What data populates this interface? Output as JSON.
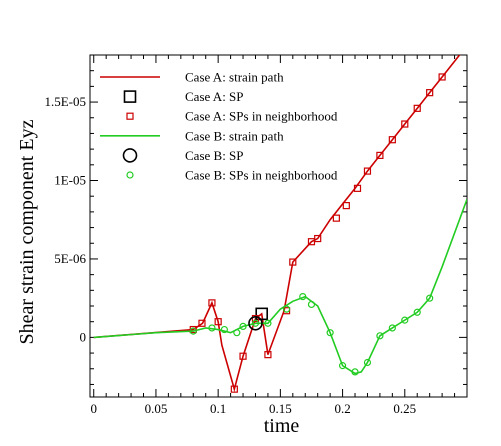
{
  "chart_data": {
    "type": "line",
    "title": "",
    "xlabel": "time",
    "ylabel": "Shear strain component Eyz",
    "xlim": [
      -0.003,
      0.3
    ],
    "ylim": [
      -3.8e-06,
      1.8e-05
    ],
    "x_ticks": [
      {
        "value": 0,
        "label": "0"
      },
      {
        "value": 0.05,
        "label": "0.05"
      },
      {
        "value": 0.1,
        "label": "0.1"
      },
      {
        "value": 0.15,
        "label": "0.15"
      },
      {
        "value": 0.2,
        "label": "0.2"
      },
      {
        "value": 0.25,
        "label": "0.25"
      }
    ],
    "y_ticks": [
      {
        "value": 0,
        "label": "0"
      },
      {
        "value": 5e-06,
        "label": "5E-06"
      },
      {
        "value": 1e-05,
        "label": "1E-05"
      },
      {
        "value": 1.5e-05,
        "label": "1.5E-05"
      }
    ],
    "legend_position": "top-left",
    "series": [
      {
        "name": "Case A: strain path",
        "color": "#cc0000",
        "marker": "none",
        "x": [
          0,
          0.08,
          0.0875,
          0.095,
          0.1,
          0.103,
          0.113,
          0.12,
          0.13,
          0.135,
          0.14,
          0.153,
          0.16,
          0.175,
          0.18,
          0.19,
          0.2,
          0.21,
          0.22,
          0.23,
          0.24,
          0.25,
          0.26,
          0.27,
          0.28,
          0.3
        ],
        "y": [
          0,
          5e-07,
          9e-07,
          2.2e-06,
          1e-06,
          -5e-07,
          -3.3e-06,
          -1.2e-06,
          1.2e-06,
          1.5e-06,
          -1.1e-06,
          1.7e-06,
          4.8e-06,
          6.1e-06,
          6.3e-06,
          7.5e-06,
          8.5e-06,
          9.5e-06,
          1.06e-05,
          1.16e-05,
          1.26e-05,
          1.36e-05,
          1.46e-05,
          1.56e-05,
          1.66e-05,
          1.86e-05
        ]
      },
      {
        "name": "Case A: SP",
        "color": "#000000",
        "marker": "square-large",
        "x": [
          0.135
        ],
        "y": [
          1.5e-06
        ]
      },
      {
        "name": "Case A: SPs in neighborhood",
        "color": "#cc0000",
        "marker": "square-small",
        "x": [
          0.08,
          0.087,
          0.095,
          0.1,
          0.113,
          0.12,
          0.13,
          0.14,
          0.155,
          0.16,
          0.175,
          0.18,
          0.195,
          0.203,
          0.212,
          0.22,
          0.23,
          0.24,
          0.25,
          0.26,
          0.27,
          0.28
        ],
        "y": [
          5e-07,
          9e-07,
          2.2e-06,
          1e-06,
          -3.3e-06,
          -1.2e-06,
          1.2e-06,
          -1.1e-06,
          1.7e-06,
          4.8e-06,
          6.1e-06,
          6.3e-06,
          7.6e-06,
          8.4e-06,
          9.5e-06,
          1.06e-05,
          1.16e-05,
          1.26e-05,
          1.36e-05,
          1.46e-05,
          1.56e-05,
          1.66e-05
        ]
      },
      {
        "name": "Case B: strain path",
        "color": "#22cc22",
        "marker": "none",
        "x": [
          0,
          0.05,
          0.08,
          0.09,
          0.1,
          0.11,
          0.12,
          0.13,
          0.14,
          0.15,
          0.16,
          0.17,
          0.18,
          0.19,
          0.2,
          0.21,
          0.215,
          0.22,
          0.23,
          0.24,
          0.25,
          0.26,
          0.27,
          0.28,
          0.3
        ],
        "y": [
          0,
          3e-07,
          4e-07,
          6e-07,
          5e-07,
          3e-07,
          7e-07,
          9e-07,
          9e-07,
          1.8e-06,
          2.3e-06,
          2.6e-06,
          2e-06,
          3e-07,
          -1.8e-06,
          -2.3e-06,
          -2.2e-06,
          -1.6e-06,
          1e-07,
          6e-07,
          1.1e-06,
          1.6e-06,
          2.5e-06,
          4.5e-06,
          8.8e-06
        ]
      },
      {
        "name": "Case B: SP",
        "color": "#000000",
        "marker": "circle-large",
        "x": [
          0.13
        ],
        "y": [
          9e-07
        ]
      },
      {
        "name": "Case B: SPs in neighborhood",
        "color": "#22cc22",
        "marker": "circle-small",
        "x": [
          0.08,
          0.095,
          0.105,
          0.115,
          0.12,
          0.13,
          0.14,
          0.155,
          0.168,
          0.175,
          0.19,
          0.2,
          0.21,
          0.22,
          0.23,
          0.24,
          0.25,
          0.26,
          0.27
        ],
        "y": [
          4e-07,
          6e-07,
          5e-07,
          3e-07,
          7e-07,
          9e-07,
          9e-07,
          1.8e-06,
          2.6e-06,
          2.1e-06,
          3e-07,
          -1.8e-06,
          -2.2e-06,
          -1.6e-06,
          1e-07,
          6e-07,
          1.1e-06,
          1.6e-06,
          2.5e-06
        ]
      }
    ]
  }
}
